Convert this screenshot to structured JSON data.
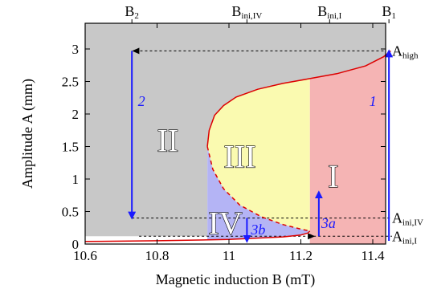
{
  "chart_data": {
    "type": "area",
    "xlabel": "Magnetic induction B (mT)",
    "ylabel": "Amplitude A (mm)",
    "xlim": [
      10.6,
      11.5
    ],
    "ylim": [
      0,
      3.1
    ],
    "x_ticks": [
      "10.6",
      "10.8",
      "11",
      "11.2",
      "11.4"
    ],
    "y_ticks": [
      "0",
      "0.5",
      "1",
      "1.5",
      "2",
      "2.5",
      "3"
    ],
    "top_labels": [
      {
        "base": "B",
        "sub": "2",
        "x": 10.73
      },
      {
        "base": "B",
        "sub": "ini,IV",
        "x": 11.05
      },
      {
        "base": "B",
        "sub": "ini,I",
        "x": 11.28
      },
      {
        "base": "B",
        "sub": "1",
        "x": 11.445
      }
    ],
    "right_labels": [
      {
        "base": "A",
        "sub": "high",
        "y": 2.97
      },
      {
        "base": "A",
        "sub": "ini,IV",
        "y": 0.4
      },
      {
        "base": "A",
        "sub": "ini,I",
        "y": 0.12
      }
    ],
    "regions": [
      {
        "name": "II",
        "color": "#c8c8c8",
        "label_x": 10.83,
        "label_y": 1.6
      },
      {
        "name": "III",
        "color": "#fafab0",
        "label_x": 11.03,
        "label_y": 1.35
      },
      {
        "name": "IV",
        "color": "#b4b4f5",
        "label_x": 10.99,
        "label_y": 0.33
      },
      {
        "name": "I",
        "color": "#f5b4b4",
        "label_x": 11.29,
        "label_y": 1.05
      }
    ],
    "response_curve": {
      "color": "#dd0000",
      "upper_branch": [
        [
          10.94,
          1.5
        ],
        [
          10.945,
          1.75
        ],
        [
          10.96,
          1.98
        ],
        [
          10.985,
          2.13
        ],
        [
          11.02,
          2.26
        ],
        [
          11.08,
          2.38
        ],
        [
          11.15,
          2.47
        ],
        [
          11.22,
          2.54
        ],
        [
          11.3,
          2.62
        ],
        [
          11.38,
          2.74
        ],
        [
          11.43,
          2.88
        ],
        [
          11.45,
          2.97
        ]
      ],
      "unstable_branch": [
        [
          10.94,
          1.5
        ],
        [
          10.955,
          1.15
        ],
        [
          10.985,
          0.85
        ],
        [
          11.03,
          0.6
        ],
        [
          11.09,
          0.42
        ],
        [
          11.15,
          0.3
        ],
        [
          11.2,
          0.23
        ],
        [
          11.225,
          0.2
        ]
      ],
      "lower_branch": [
        [
          10.6,
          0.04
        ],
        [
          10.8,
          0.05
        ],
        [
          11.0,
          0.07
        ],
        [
          11.15,
          0.11
        ],
        [
          11.2,
          0.14
        ],
        [
          11.22,
          0.17
        ],
        [
          11.225,
          0.2
        ]
      ]
    },
    "arrows": [
      {
        "label": "1",
        "from": [
          11.445,
          0.05
        ],
        "to": [
          11.445,
          2.97
        ]
      },
      {
        "label": "2",
        "from": [
          10.73,
          2.97
        ],
        "to": [
          10.73,
          0.4
        ]
      },
      {
        "label": "3a",
        "from": [
          11.25,
          0.12
        ],
        "to": [
          11.25,
          0.8
        ]
      },
      {
        "label": "3b",
        "from": [
          11.05,
          0.4
        ],
        "to": [
          11.05,
          0.04
        ]
      }
    ],
    "dashed_guides": [
      {
        "from": [
          11.43,
          2.97
        ],
        "to": [
          10.735,
          2.97
        ],
        "arrow": true
      },
      {
        "from": [
          10.73,
          0.4
        ],
        "to": [
          11.5,
          0.4
        ],
        "arrow": false
      },
      {
        "from": [
          10.75,
          0.12
        ],
        "to": [
          11.235,
          0.12
        ],
        "arrow": true
      },
      {
        "from": [
          11.235,
          0.12
        ],
        "to": [
          11.5,
          0.12
        ],
        "arrow": false
      }
    ],
    "arrow_color": "#1a1aff",
    "grid": false
  }
}
